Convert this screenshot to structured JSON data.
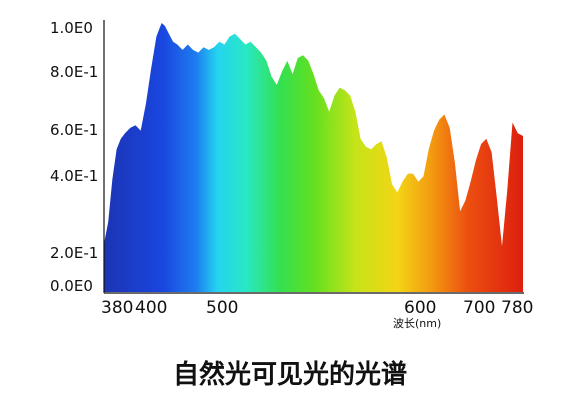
{
  "chart_data": {
    "type": "area",
    "title": "自然光可见光的光谱",
    "xlabel": "波长(nm)",
    "ylabel": "",
    "x_ticks": [
      "380",
      "400",
      "500",
      "600",
      "700",
      "780"
    ],
    "y_ticks": [
      "0.0E0",
      "2.0E-1",
      "4.0E-1",
      "6.0E-1",
      "8.0E-1",
      "1.0E0"
    ],
    "xlim": [
      380,
      780
    ],
    "ylim": [
      0,
      1.0
    ],
    "grid": false,
    "legend": "none",
    "series": [
      {
        "x": [
          380,
          384,
          388,
          392,
          396,
          400,
          405,
          410,
          415,
          420,
          425,
          430,
          435,
          438,
          442,
          446,
          450,
          455,
          460,
          465,
          470,
          475,
          480,
          485,
          490,
          495,
          500,
          505,
          510,
          515,
          520,
          525,
          530,
          535,
          540,
          545,
          550,
          555,
          560,
          565,
          570,
          575,
          580,
          585,
          590,
          595,
          600,
          605,
          610,
          615,
          620,
          625,
          630,
          635,
          640,
          645,
          650,
          655,
          660,
          665,
          670,
          675,
          680,
          685,
          690,
          695,
          700,
          705,
          710,
          715,
          720,
          725,
          730,
          735,
          740,
          745,
          750,
          755,
          760,
          765,
          770,
          775,
          780
        ],
        "y": [
          0.18,
          0.26,
          0.42,
          0.53,
          0.57,
          0.59,
          0.61,
          0.62,
          0.6,
          0.7,
          0.83,
          0.95,
          1.0,
          0.99,
          0.96,
          0.93,
          0.92,
          0.9,
          0.92,
          0.9,
          0.89,
          0.91,
          0.9,
          0.91,
          0.93,
          0.92,
          0.95,
          0.96,
          0.94,
          0.92,
          0.93,
          0.91,
          0.89,
          0.86,
          0.8,
          0.77,
          0.82,
          0.86,
          0.81,
          0.87,
          0.88,
          0.86,
          0.81,
          0.75,
          0.72,
          0.67,
          0.73,
          0.76,
          0.75,
          0.73,
          0.67,
          0.57,
          0.54,
          0.53,
          0.55,
          0.56,
          0.5,
          0.4,
          0.37,
          0.41,
          0.44,
          0.44,
          0.41,
          0.43,
          0.53,
          0.6,
          0.64,
          0.66,
          0.61,
          0.48,
          0.3,
          0.34,
          0.41,
          0.49,
          0.55,
          0.57,
          0.52,
          0.35,
          0.17,
          0.38,
          0.63,
          0.59,
          0.58
        ]
      }
    ]
  }
}
